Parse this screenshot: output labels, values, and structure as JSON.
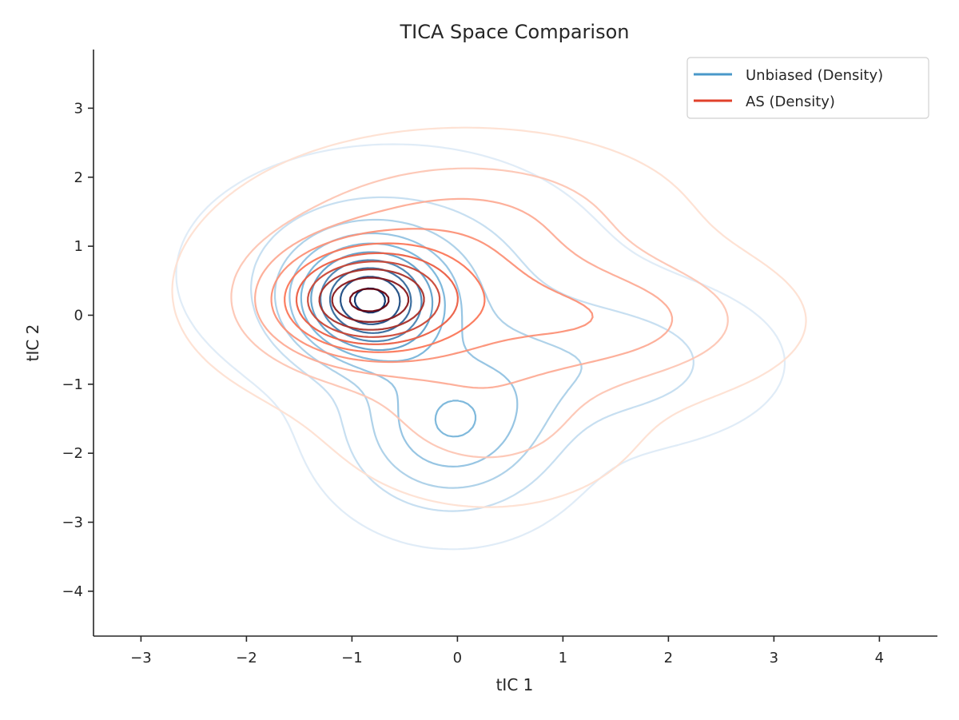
{
  "chart_data": {
    "type": "contour",
    "title": "TICA Space Comparison",
    "xlabel": "tIC 1",
    "ylabel": "tIC 2",
    "xlim": [
      -3.45,
      4.55
    ],
    "ylim": [
      -4.65,
      3.85
    ],
    "xticks": [
      -3,
      -2,
      -1,
      0,
      1,
      2,
      3,
      4
    ],
    "yticks": [
      -4,
      -3,
      -2,
      -1,
      0,
      1,
      2,
      3
    ],
    "xtick_labels": [
      "−3",
      "−2",
      "−1",
      "0",
      "1",
      "2",
      "3",
      "4"
    ],
    "ytick_labels": [
      "−4",
      "−3",
      "−2",
      "−1",
      "0",
      "1",
      "2",
      "3"
    ],
    "grid": false,
    "legend_position": "top-right",
    "levels": 10,
    "series": [
      {
        "name": "Unbiased (Density)",
        "color": "#4a98c9",
        "colormap": "Blues",
        "components": [
          {
            "weight": 1.0,
            "cx": -0.85,
            "cy": 0.2,
            "sx": 0.45,
            "sy": 0.55
          },
          {
            "weight": 0.55,
            "cx": -0.05,
            "cy": -1.65,
            "sx": 0.65,
            "sy": 0.8
          },
          {
            "weight": 0.25,
            "cx": 1.5,
            "cy": -0.7,
            "sx": 0.9,
            "sy": 0.7
          },
          {
            "weight": 0.3,
            "cx": -0.6,
            "cy": 0.6,
            "sx": 1.1,
            "sy": 1.0
          }
        ]
      },
      {
        "name": "AS (Density)",
        "color": "#e0412b",
        "colormap": "Reds",
        "components": [
          {
            "weight": 1.0,
            "cx": -0.9,
            "cy": 0.2,
            "sx": 0.55,
            "sy": 0.5
          },
          {
            "weight": 0.45,
            "cx": -0.2,
            "cy": 0.4,
            "sx": 1.2,
            "sy": 1.0
          },
          {
            "weight": 0.3,
            "cx": 1.6,
            "cy": -0.1,
            "sx": 0.9,
            "sy": 0.6
          },
          {
            "weight": 0.22,
            "cx": 0.3,
            "cy": -1.6,
            "sx": 0.8,
            "sy": 0.7
          },
          {
            "weight": 0.15,
            "cx": 0.3,
            "cy": 1.6,
            "sx": 1.0,
            "sy": 0.6
          }
        ]
      }
    ]
  }
}
